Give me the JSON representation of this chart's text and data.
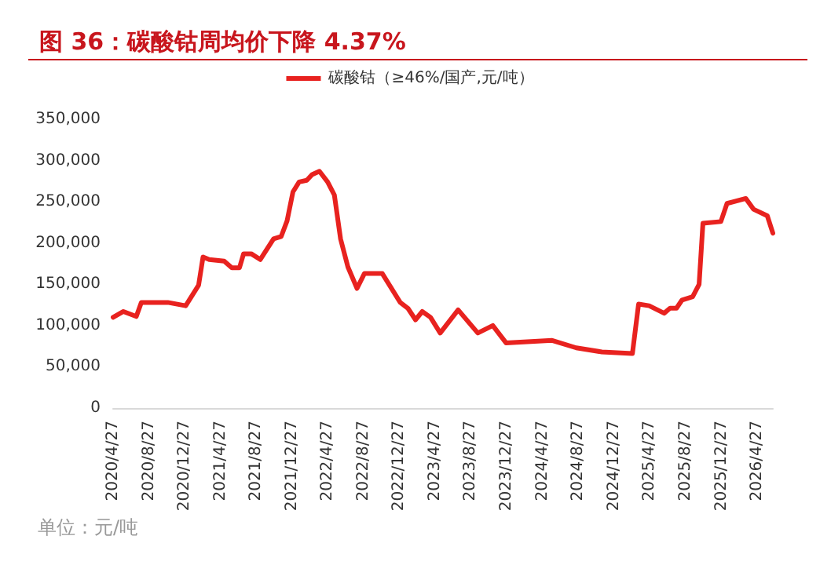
{
  "chart_data": {
    "type": "line",
    "title": "图 36：碳酸钴周均价下降 4.37%",
    "annotations": [
      "单位：元/吨"
    ],
    "x": [
      "2020-04-27",
      "2020-06-01",
      "2020-07-15",
      "2020-08-01",
      "2020-10-30",
      "2020-12-30",
      "2021-02-12",
      "2021-02-27",
      "2021-03-20",
      "2021-05-10",
      "2021-06-05",
      "2021-07-01",
      "2021-07-15",
      "2021-08-10",
      "2021-09-10",
      "2021-10-25",
      "2021-11-20",
      "2021-12-10",
      "2021-12-30",
      "2022-01-20",
      "2022-02-15",
      "2022-03-05",
      "2022-03-30",
      "2022-04-27",
      "2022-05-20",
      "2022-06-10",
      "2022-07-05",
      "2022-08-05",
      "2022-08-30",
      "2022-10-30",
      "2022-12-30",
      "2023-01-25",
      "2023-02-20",
      "2023-03-15",
      "2023-04-12",
      "2023-05-15",
      "2023-07-15",
      "2023-09-20",
      "2023-11-10",
      "2023-12-25",
      "2024-05-30",
      "2024-08-20",
      "2024-11-15",
      "2025-02-27",
      "2025-03-20",
      "2025-04-25",
      "2025-06-15",
      "2025-07-05",
      "2025-07-27",
      "2025-08-15",
      "2025-09-20",
      "2025-10-12",
      "2025-10-25",
      "2025-12-25",
      "2026-01-15",
      "2026-03-20",
      "2026-04-15",
      "2026-06-01",
      "2026-06-20"
    ],
    "series": [
      {
        "name": "碳酸钴（≥46%/国产,元/吨）",
        "color": "#e8221f",
        "values": [
          110000,
          117000,
          111000,
          128000,
          128000,
          124000,
          149000,
          183000,
          180000,
          178000,
          170000,
          170000,
          187000,
          187000,
          180000,
          205000,
          208000,
          227000,
          262000,
          274000,
          276000,
          283000,
          287000,
          274000,
          258000,
          205000,
          171000,
          145000,
          163000,
          163000,
          128000,
          121000,
          107000,
          117000,
          110000,
          91000,
          119000,
          91000,
          100000,
          79000,
          82000,
          73000,
          68000,
          66000,
          126000,
          124000,
          115000,
          121000,
          121000,
          131000,
          135000,
          150000,
          224000,
          226000,
          248000,
          254000,
          241000,
          233000,
          212000
        ]
      }
    ],
    "xlim": [
      "2020-04-27",
      "2026-06-20"
    ],
    "xticks": [
      {
        "value": "2020-04-27",
        "label": "2020/4/27"
      },
      {
        "value": "2020-08-27",
        "label": "2020/8/27"
      },
      {
        "value": "2020-12-27",
        "label": "2020/12/27"
      },
      {
        "value": "2021-04-27",
        "label": "2021/4/27"
      },
      {
        "value": "2021-08-27",
        "label": "2021/8/27"
      },
      {
        "value": "2021-12-27",
        "label": "2021/12/27"
      },
      {
        "value": "2022-04-27",
        "label": "2022/4/27"
      },
      {
        "value": "2022-08-27",
        "label": "2022/8/27"
      },
      {
        "value": "2022-12-27",
        "label": "2022/12/27"
      },
      {
        "value": "2023-04-27",
        "label": "2023/4/27"
      },
      {
        "value": "2023-08-27",
        "label": "2023/8/27"
      },
      {
        "value": "2023-12-27",
        "label": "2023/12/27"
      },
      {
        "value": "2024-04-27",
        "label": "2024/4/27"
      },
      {
        "value": "2024-08-27",
        "label": "2024/8/27"
      },
      {
        "value": "2024-12-27",
        "label": "2024/12/27"
      },
      {
        "value": "2025-04-27",
        "label": "2025/4/27"
      },
      {
        "value": "2025-08-27",
        "label": "2025/8/27"
      },
      {
        "value": "2025-12-27",
        "label": "2025/12/27"
      },
      {
        "value": "2026-04-27",
        "label": "2026/4/27"
      }
    ],
    "ylim": [
      0,
      350000
    ],
    "yticks": [
      {
        "value": 0,
        "label": "0"
      },
      {
        "value": 50000,
        "label": "50,000"
      },
      {
        "value": 100000,
        "label": "100,000"
      },
      {
        "value": 150000,
        "label": "150,000"
      },
      {
        "value": 200000,
        "label": "200,000"
      },
      {
        "value": 250000,
        "label": "250,000"
      },
      {
        "value": 300000,
        "label": "300,000"
      },
      {
        "value": 350000,
        "label": "350,000"
      }
    ],
    "grid": false,
    "legend": "top",
    "marker": "none",
    "line_style": "solid"
  }
}
